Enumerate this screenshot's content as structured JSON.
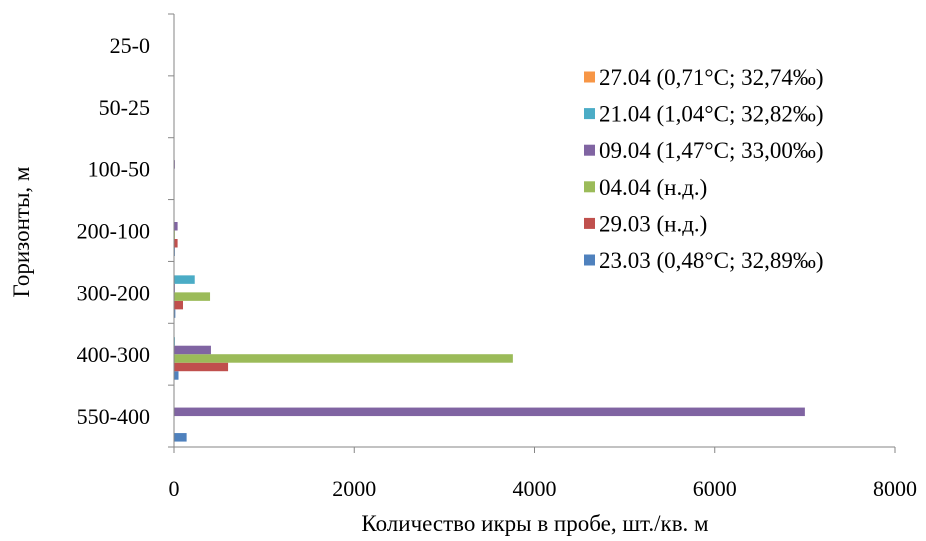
{
  "chart_data": {
    "type": "bar",
    "orientation": "horizontal",
    "xlabel": "Количество икры в пробе, шт./кв. м",
    "ylabel": "Горизонты, м",
    "xlim": [
      0,
      8000
    ],
    "xticks": [
      "0",
      "2000",
      "4000",
      "6000",
      "8000"
    ],
    "categories": [
      "550-400",
      "400-300",
      "300-200",
      "200-100",
      "100-50",
      "50-25",
      "25-0"
    ],
    "grid": false,
    "legend_position": "right",
    "series": [
      {
        "name": "23.03 (0,48°C; 32,89‰)",
        "color": "#4F81BD",
        "values": [
          140,
          50,
          15,
          10,
          5,
          3,
          2
        ]
      },
      {
        "name": "29.03 (н.д.)",
        "color": "#C0504D",
        "values": [
          0,
          600,
          100,
          40,
          5,
          3,
          2
        ]
      },
      {
        "name": "04.04 (н.д.)",
        "color": "#9BBB59",
        "values": [
          0,
          3760,
          400,
          10,
          5,
          3,
          2
        ]
      },
      {
        "name": "09.04 (1,47°C; 33,00‰)",
        "color": "#8064A2",
        "values": [
          7000,
          410,
          10,
          40,
          10,
          5,
          3
        ]
      },
      {
        "name": "21.04 (1,04°C; 32,82‰)",
        "color": "#4BACC6",
        "values": [
          0,
          10,
          230,
          5,
          3,
          2,
          2
        ]
      },
      {
        "name": "27.04 (0,71°C; 32,74‰)",
        "color": "#F79646",
        "values": [
          0,
          5,
          5,
          5,
          3,
          2,
          2
        ]
      }
    ]
  }
}
